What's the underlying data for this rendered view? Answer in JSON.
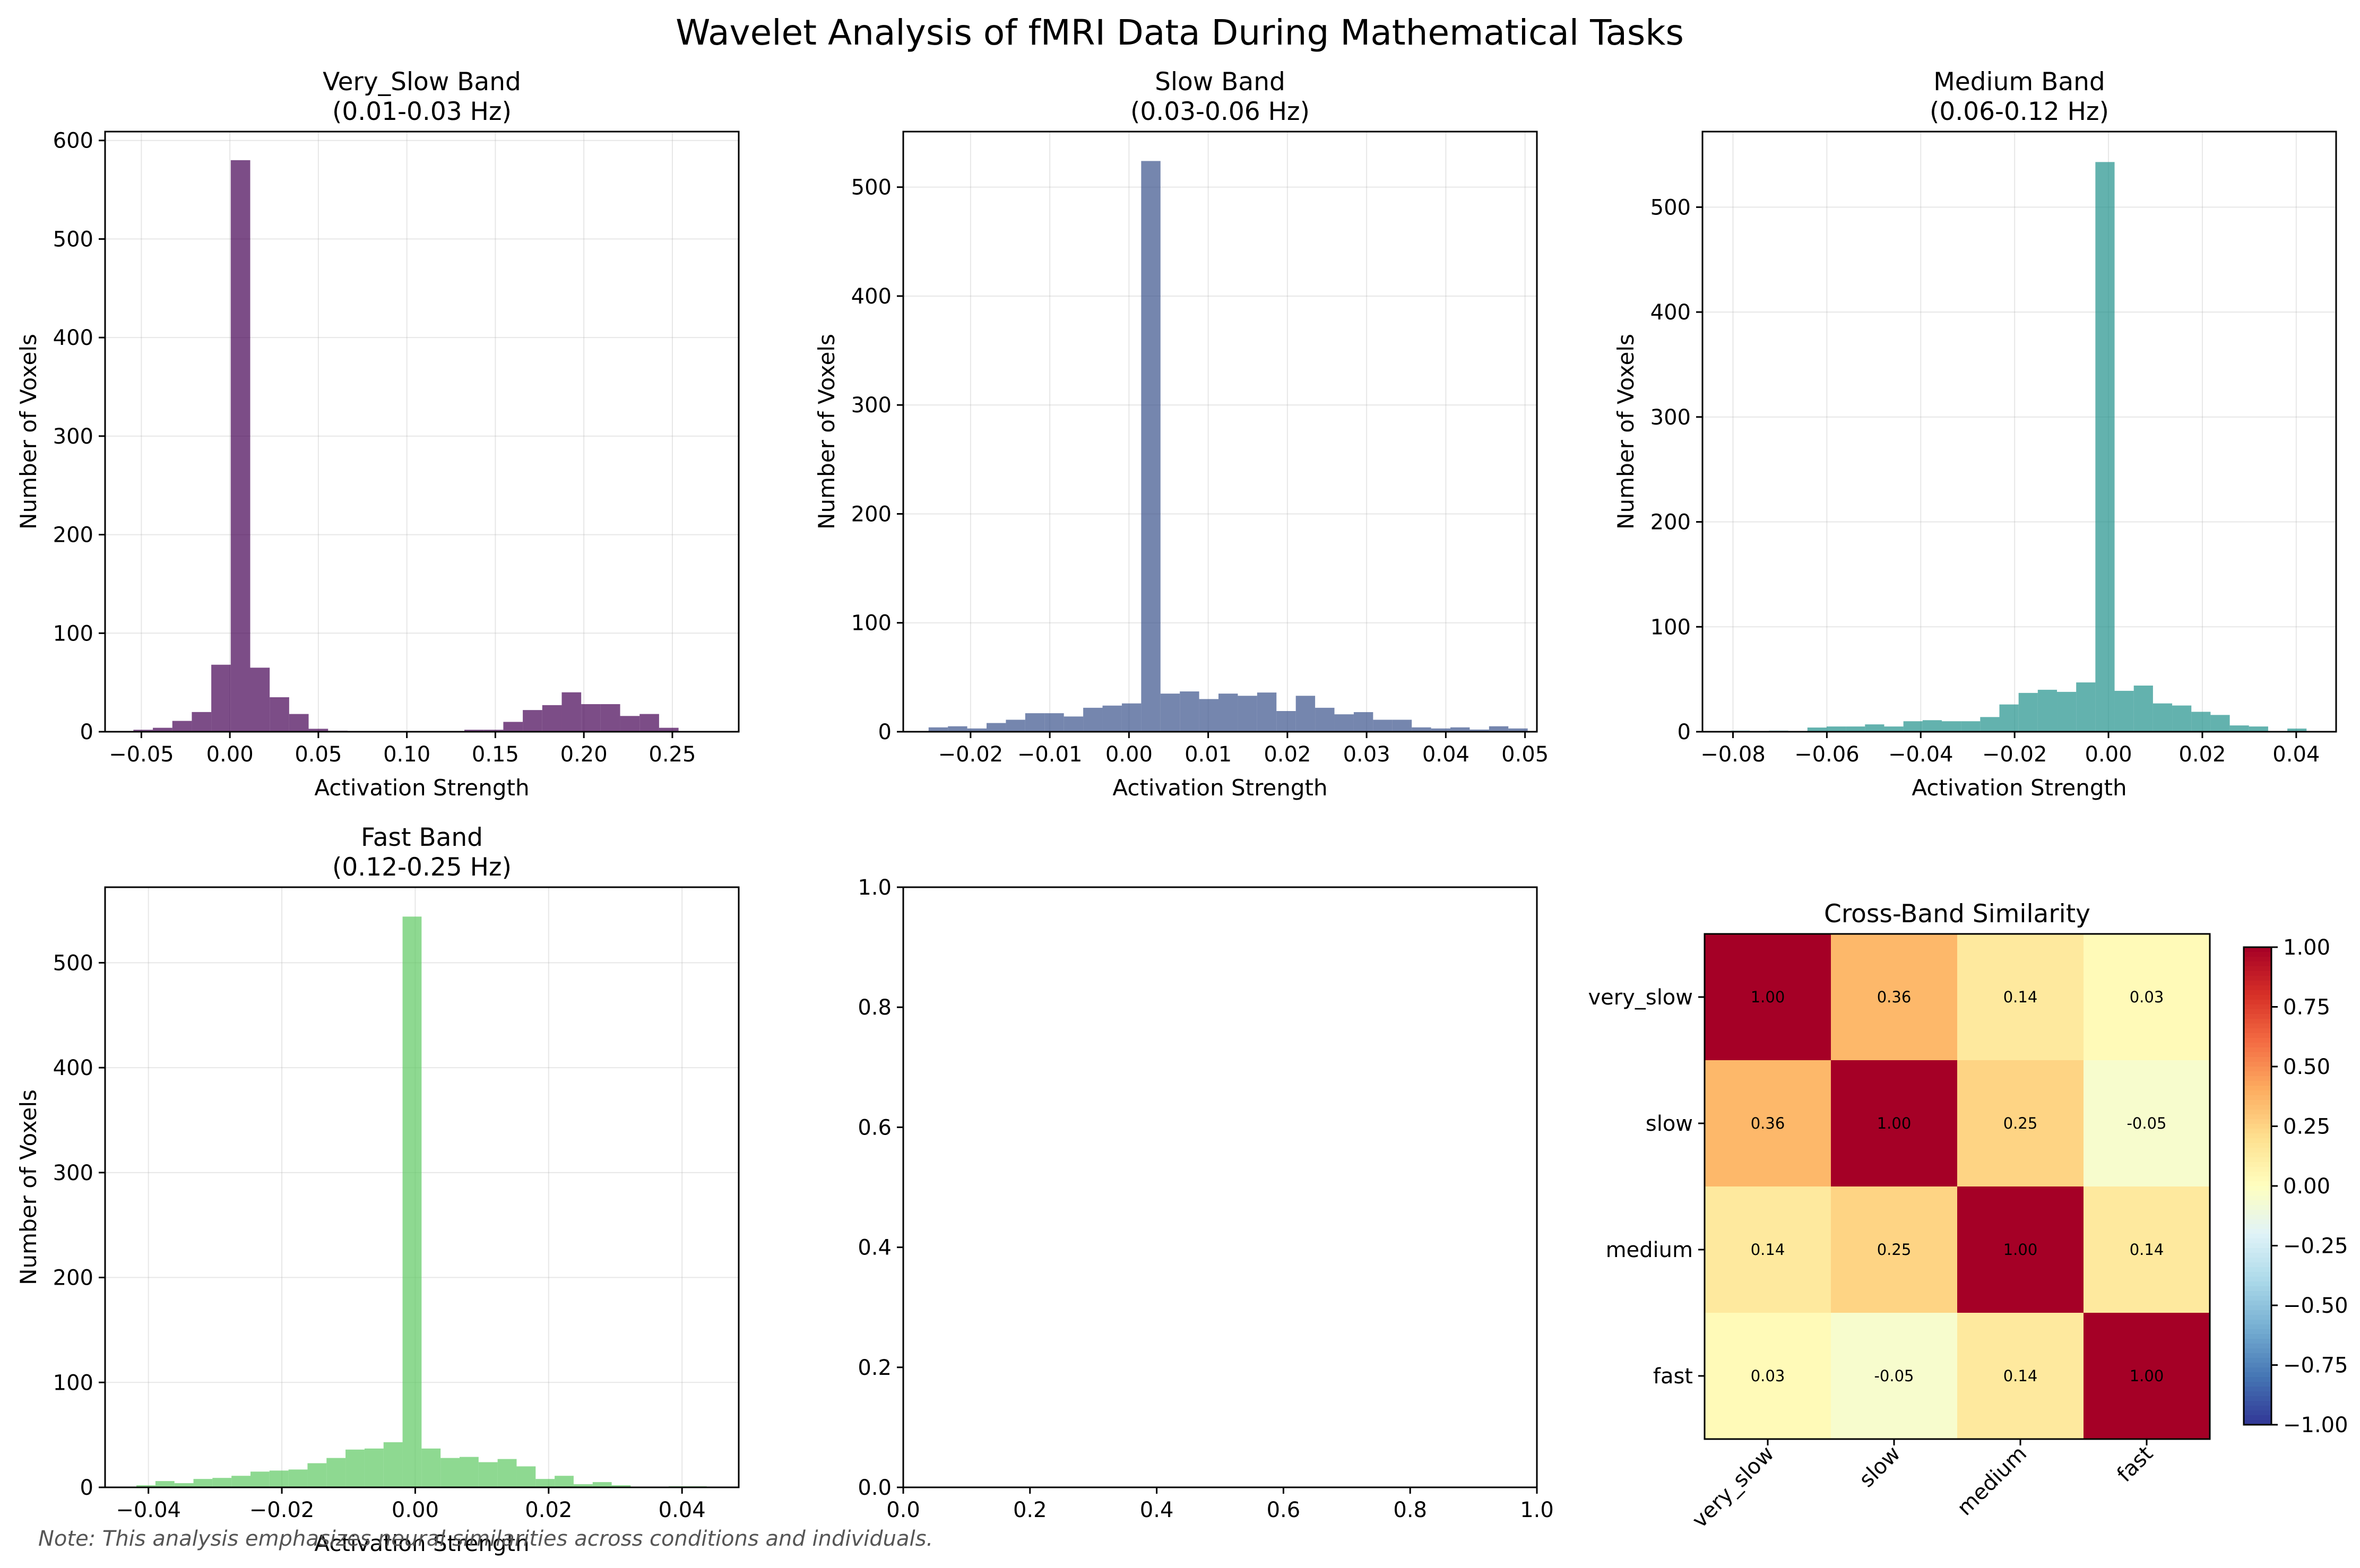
{
  "figure": {
    "title": "Wavelet Analysis of fMRI Data During Mathematical Tasks",
    "note": "Note: This analysis emphasizes neural similarities across conditions and individuals."
  },
  "chart_data": [
    {
      "type": "bar",
      "id": "very_slow",
      "title_lines": [
        "Very_Slow Band",
        "(0.01-0.03 Hz)"
      ],
      "xlabel": "Activation Strength",
      "ylabel": "Number of Voxels",
      "color": "#440154",
      "xlim": [
        -0.0705,
        0.2875
      ],
      "ylim": [
        0,
        609
      ],
      "xticks": [
        -0.05,
        0.0,
        0.05,
        0.1,
        0.15,
        0.2,
        0.25
      ],
      "xtick_labels": [
        "−0.05",
        "0.00",
        "0.05",
        "0.10",
        "0.15",
        "0.20",
        "0.25"
      ],
      "yticks": [
        0,
        100,
        200,
        300,
        400,
        500,
        600
      ],
      "grid": true,
      "bin_start": -0.0545,
      "bin_width": 0.011,
      "values": [
        2,
        4,
        11,
        20,
        68,
        580,
        65,
        35,
        18,
        3,
        1,
        0,
        0,
        0,
        0,
        0,
        0,
        2,
        2,
        10,
        22,
        27,
        40,
        28,
        28,
        16,
        18,
        4
      ]
    },
    {
      "type": "bar",
      "id": "slow",
      "title_lines": [
        "Slow Band",
        "(0.03-0.06 Hz)"
      ],
      "xlabel": "Activation Strength",
      "ylabel": "Number of Voxels",
      "color": "#3b528b",
      "xlim": [
        -0.0285,
        0.0515
      ],
      "ylim": [
        0,
        551
      ],
      "xticks": [
        -0.02,
        -0.01,
        0.0,
        0.01,
        0.02,
        0.03,
        0.04,
        0.05
      ],
      "xtick_labels": [
        "−0.02",
        "−0.01",
        "0.00",
        "0.01",
        "0.02",
        "0.03",
        "0.04",
        "0.05"
      ],
      "yticks": [
        0,
        100,
        200,
        300,
        400,
        500
      ],
      "grid": true,
      "bin_start": -0.0253,
      "bin_width": 0.00244,
      "values": [
        4,
        5,
        3,
        8,
        11,
        17,
        17,
        14,
        22,
        24,
        26,
        524,
        35,
        37,
        30,
        35,
        33,
        36,
        19,
        33,
        22,
        16,
        18,
        11,
        11,
        4,
        3,
        4,
        2,
        5,
        3
      ]
    },
    {
      "type": "bar",
      "id": "medium",
      "title_lines": [
        "Medium Band",
        "(0.06-0.12 Hz)"
      ],
      "xlabel": "Activation Strength",
      "ylabel": "Number of Voxels",
      "color": "#21918c",
      "xlim": [
        -0.0865,
        0.0485
      ],
      "ylim": [
        0,
        572
      ],
      "xticks": [
        -0.08,
        -0.06,
        -0.04,
        -0.02,
        0.0,
        0.02,
        0.04
      ],
      "xtick_labels": [
        "−0.08",
        "−0.06",
        "−0.04",
        "−0.02",
        "0.00",
        "0.02",
        "0.04"
      ],
      "yticks": [
        0,
        100,
        200,
        300,
        400,
        500
      ],
      "grid": true,
      "bin_start": -0.0805,
      "bin_width": 0.00409,
      "values": [
        1,
        0,
        1,
        0,
        4,
        5,
        5,
        7,
        5,
        10,
        11,
        10,
        10,
        14,
        26,
        37,
        40,
        38,
        47,
        543,
        39,
        44,
        27,
        25,
        19,
        16,
        6,
        5,
        0,
        3
      ]
    },
    {
      "type": "bar",
      "id": "fast",
      "title_lines": [
        "Fast Band",
        "(0.12-0.25 Hz)"
      ],
      "xlabel": "Activation Strength",
      "ylabel": "Number of Voxels",
      "color": "#5ec962",
      "xlim": [
        -0.0465,
        0.0485
      ],
      "ylim": [
        0,
        572
      ],
      "xticks": [
        -0.04,
        -0.02,
        0.0,
        0.02,
        0.04
      ],
      "xtick_labels": [
        "−0.04",
        "−0.02",
        "0.00",
        "0.02",
        "0.04"
      ],
      "yticks": [
        0,
        100,
        200,
        300,
        400,
        500
      ],
      "grid": true,
      "bin_start": -0.0418,
      "bin_width": 0.00285,
      "values": [
        2,
        6,
        4,
        8,
        9,
        11,
        15,
        16,
        17,
        23,
        28,
        36,
        37,
        43,
        544,
        37,
        28,
        29,
        24,
        27,
        20,
        8,
        11,
        3,
        5,
        2,
        0,
        0,
        1,
        1
      ]
    },
    {
      "type": "empty",
      "id": "blank",
      "xlim": [
        0,
        1
      ],
      "ylim": [
        0,
        1
      ],
      "xticks": [
        0,
        0.2,
        0.4,
        0.6,
        0.8,
        1.0
      ],
      "xtick_labels": [
        "0.0",
        "0.2",
        "0.4",
        "0.6",
        "0.8",
        "1.0"
      ],
      "yticks": [
        0,
        0.2,
        0.4,
        0.6,
        0.8,
        1.0
      ],
      "ytick_labels": [
        "0.0",
        "0.2",
        "0.4",
        "0.6",
        "0.8",
        "1.0"
      ]
    },
    {
      "type": "heatmap",
      "id": "similarity",
      "title": "Cross-Band Similarity",
      "labels": [
        "very_slow",
        "slow",
        "medium",
        "fast"
      ],
      "matrix": [
        [
          1.0,
          0.36,
          0.14,
          0.03
        ],
        [
          0.36,
          1.0,
          0.25,
          -0.05
        ],
        [
          0.14,
          0.25,
          1.0,
          0.14
        ],
        [
          0.03,
          -0.05,
          0.14,
          1.0
        ]
      ],
      "cell_labels": [
        [
          "1.00",
          "0.36",
          "0.14",
          "0.03"
        ],
        [
          "0.36",
          "1.00",
          "0.25",
          "-0.05"
        ],
        [
          "0.14",
          "0.25",
          "1.00",
          "0.14"
        ],
        [
          "0.03",
          "-0.05",
          "0.14",
          "1.00"
        ]
      ],
      "colormap": "RdYlBu_r",
      "vmin": -1,
      "vmax": 1,
      "colorbar_ticks": [
        1.0,
        0.75,
        0.5,
        0.25,
        0.0,
        -0.25,
        -0.5,
        -0.75,
        -1.0
      ],
      "colorbar_tick_labels": [
        "1.00",
        "0.75",
        "0.50",
        "0.25",
        "0.00",
        "−0.25",
        "−0.50",
        "−0.75",
        "−1.00"
      ]
    }
  ]
}
